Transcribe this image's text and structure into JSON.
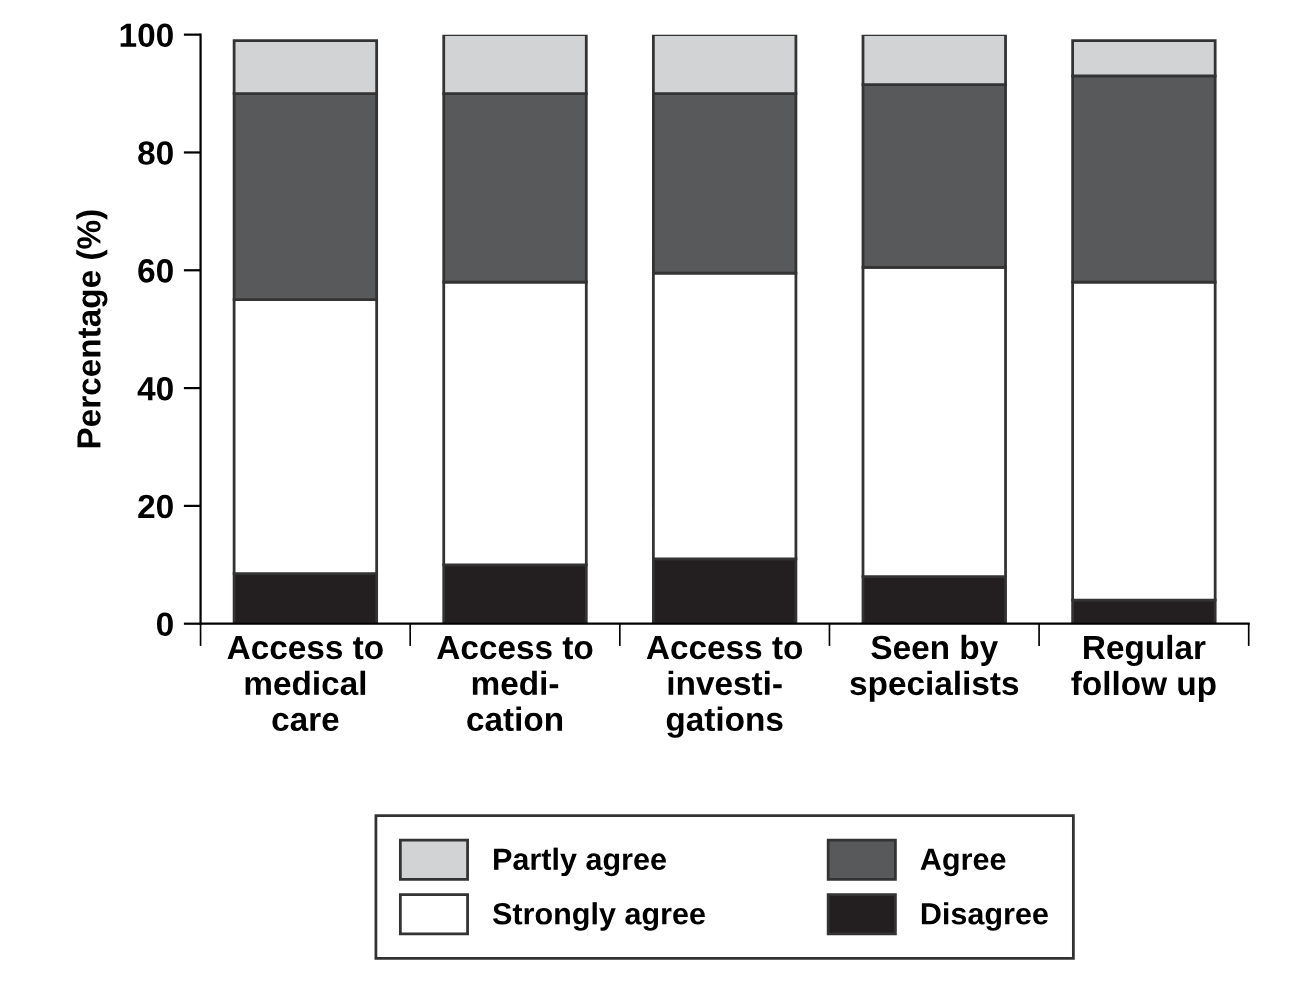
{
  "chart_data": {
    "type": "bar",
    "stacked": true,
    "ylabel": "Percentage (%)",
    "categories": [
      "Access to\nmedical\ncare",
      "Access to\nmedi-\ncation",
      "Access to\ninvesti-\ngations",
      "Seen by\nspecialists",
      "Regular\nfollow up"
    ],
    "series": [
      {
        "name": "Disagree",
        "color": "#231f20",
        "values": [
          8.5,
          10,
          11,
          8,
          4
        ]
      },
      {
        "name": "Strongly agree",
        "color": "#ffffff",
        "values": [
          46.5,
          48,
          48.5,
          52.5,
          54
        ]
      },
      {
        "name": "Agree",
        "color": "#58595b",
        "values": [
          35,
          32,
          30.5,
          31,
          35
        ]
      },
      {
        "name": "Partly agree",
        "color": "#d1d3d4",
        "values": [
          9,
          10,
          10,
          8.5,
          6
        ]
      }
    ],
    "ylim": [
      0,
      100
    ],
    "yticks": [
      0,
      20,
      40,
      60,
      80,
      100
    ],
    "grid": false,
    "legend": "bottom"
  }
}
